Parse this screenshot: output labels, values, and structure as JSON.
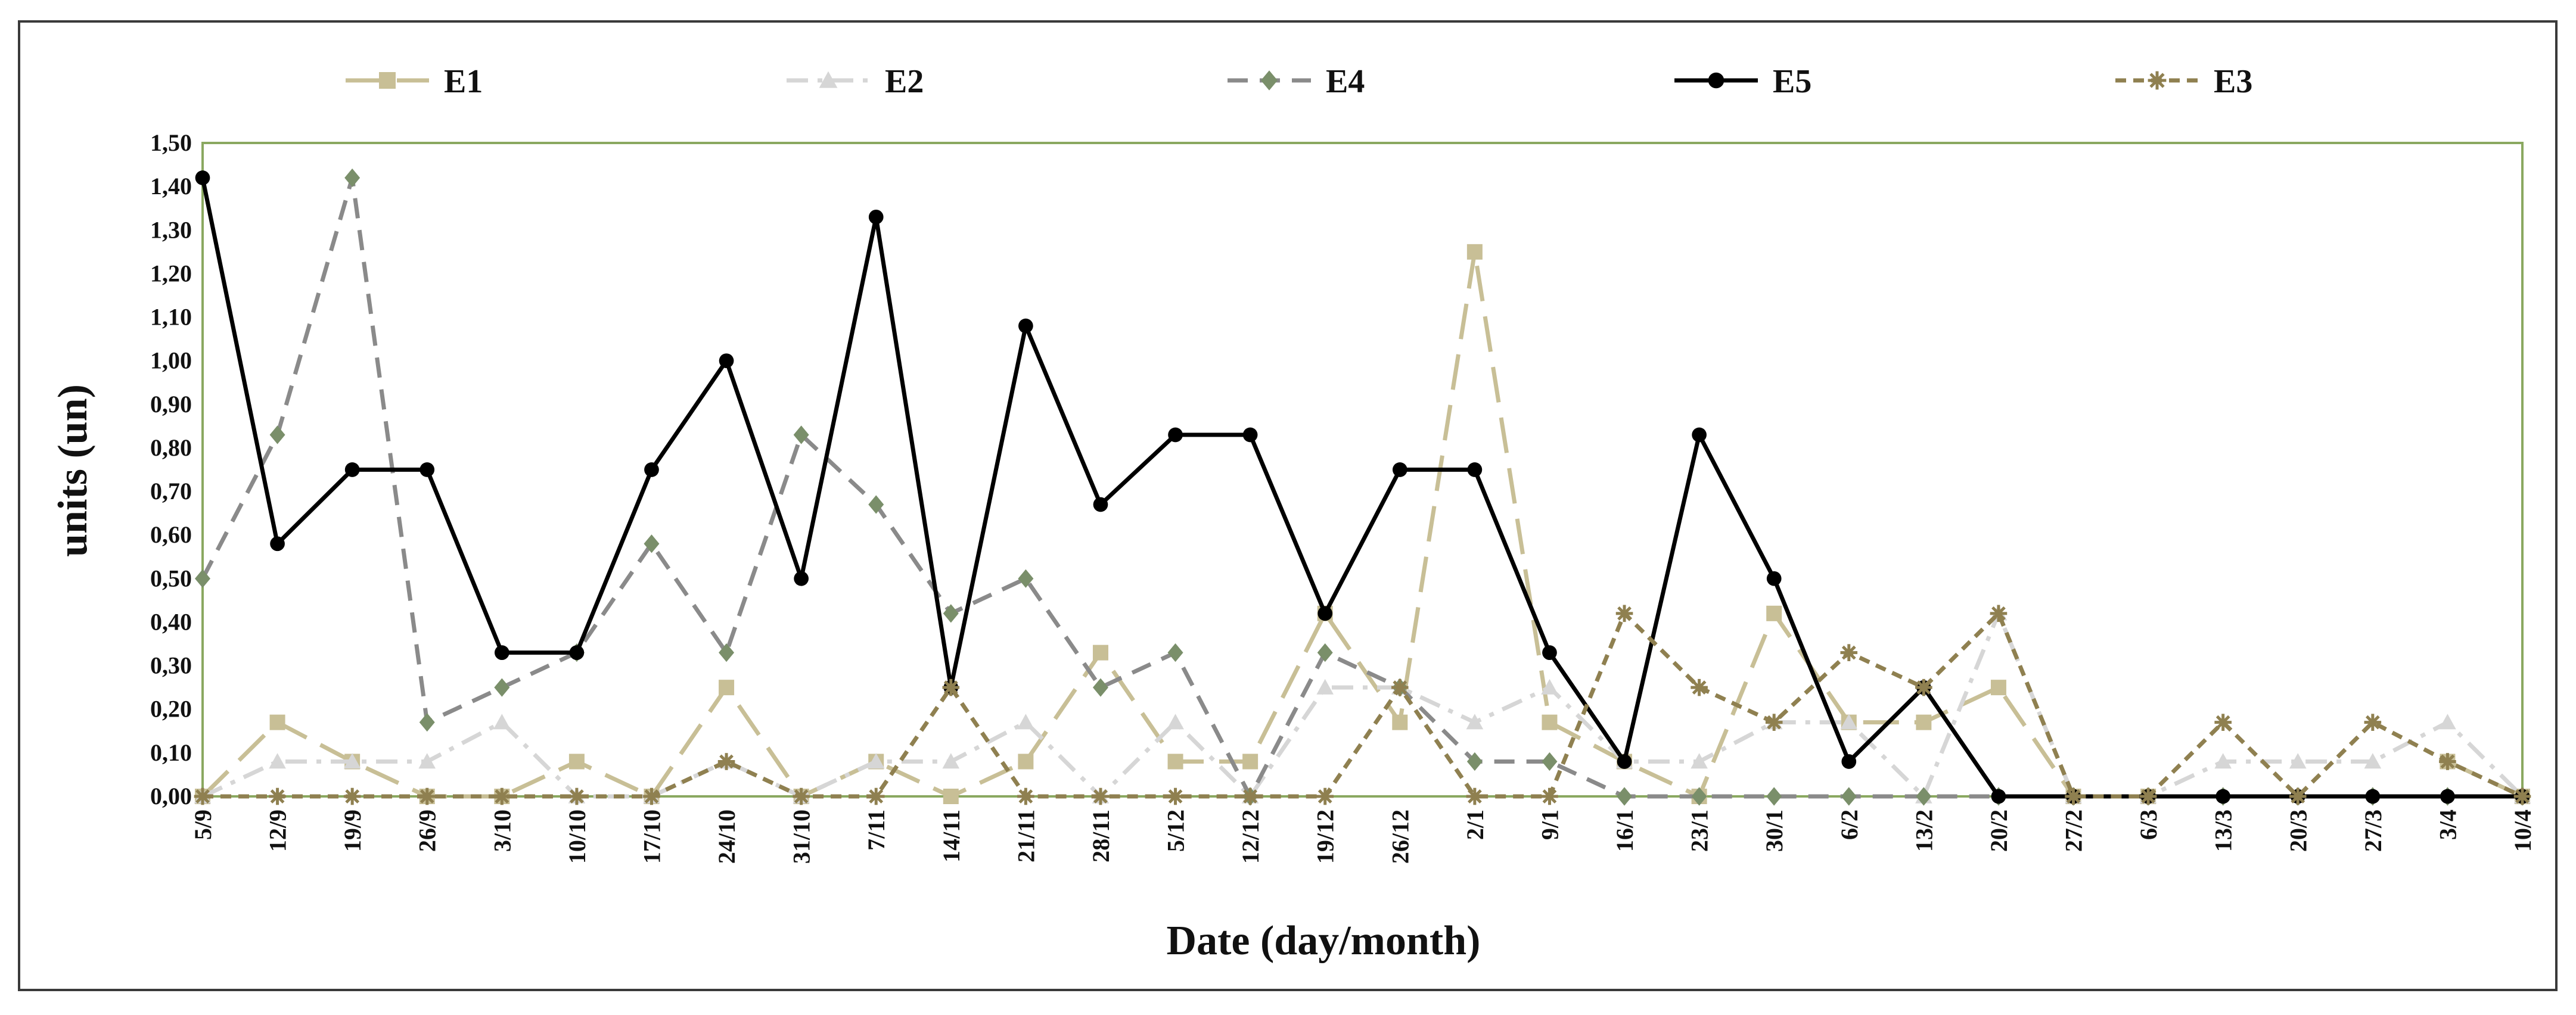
{
  "chart_data": {
    "type": "line",
    "title": "",
    "xlabel": "Date (day/month)",
    "ylabel": "units (un)",
    "ylim": [
      0,
      1.5
    ],
    "y_ticks": [
      "0,00",
      "0,10",
      "0,20",
      "0,30",
      "0,40",
      "0,50",
      "0,60",
      "0,70",
      "0,80",
      "0,90",
      "1,00",
      "1,10",
      "1,20",
      "1,30",
      "1,40",
      "1,50"
    ],
    "categories": [
      "5/9",
      "12/9",
      "19/9",
      "26/9",
      "3/10",
      "10/10",
      "17/10",
      "24/10",
      "31/10",
      "7/11",
      "14/11",
      "21/11",
      "28/11",
      "5/12",
      "12/12",
      "19/12",
      "26/12",
      "2/1",
      "9/1",
      "16/1",
      "23/1",
      "30/1",
      "6/2",
      "13/2",
      "20/2",
      "27/2",
      "6/3",
      "13/3",
      "20/3",
      "27/3",
      "3/4",
      "10/4"
    ],
    "legend_position": "top",
    "series": [
      {
        "name": "E1",
        "color": "#c8bf96",
        "marker": "square",
        "dash": "long-dash",
        "values": [
          0.0,
          0.17,
          0.08,
          0.0,
          0.0,
          0.08,
          0.0,
          0.25,
          0.0,
          0.08,
          0.0,
          0.08,
          0.33,
          0.08,
          0.08,
          0.42,
          0.17,
          1.25,
          0.17,
          0.08,
          0.0,
          0.42,
          0.17,
          0.17,
          0.25,
          0.0,
          0.0,
          null,
          null,
          null,
          0.08,
          0.0
        ]
      },
      {
        "name": "E2",
        "color": "#d6d6d6",
        "marker": "triangle",
        "dash": "dash-dot",
        "values": [
          0.0,
          0.08,
          0.08,
          0.08,
          0.17,
          0.0,
          0.0,
          0.08,
          0.0,
          0.08,
          0.08,
          0.17,
          0.0,
          0.17,
          0.0,
          0.25,
          0.25,
          0.17,
          0.25,
          0.08,
          0.08,
          0.17,
          0.17,
          0.0,
          0.42,
          0.0,
          0.0,
          0.08,
          0.08,
          0.08,
          0.17,
          0.0
        ]
      },
      {
        "name": "E4",
        "color": "#7a8f6a",
        "line_color": "#8a8a8a",
        "marker": "diamond",
        "dash": "dash",
        "values": [
          0.5,
          0.83,
          1.42,
          0.17,
          0.25,
          0.33,
          0.58,
          0.33,
          0.83,
          0.67,
          0.42,
          0.5,
          0.25,
          0.33,
          0.0,
          0.33,
          0.25,
          0.08,
          0.08,
          0.0,
          0.0,
          0.0,
          0.0,
          0.0,
          0.0,
          0.0,
          0.0,
          0.0,
          0.0,
          0.0,
          0.0,
          0.0
        ]
      },
      {
        "name": "E5",
        "color": "#000000",
        "marker": "circle",
        "dash": "solid",
        "values": [
          1.42,
          0.58,
          0.75,
          0.75,
          0.33,
          0.33,
          0.75,
          1.0,
          0.5,
          1.33,
          0.25,
          1.08,
          0.67,
          0.83,
          0.83,
          0.42,
          0.75,
          0.75,
          0.33,
          0.08,
          0.83,
          0.5,
          0.08,
          0.25,
          0.0,
          0.0,
          0.0,
          0.0,
          0.0,
          0.0,
          0.0,
          0.0
        ]
      },
      {
        "name": "E3",
        "color": "#8f8050",
        "marker": "star",
        "dash": "short-dash",
        "values": [
          0.0,
          0.0,
          0.0,
          0.0,
          0.0,
          0.0,
          0.0,
          0.08,
          0.0,
          0.0,
          0.25,
          0.0,
          0.0,
          0.0,
          0.0,
          0.0,
          0.25,
          0.0,
          0.0,
          0.42,
          0.25,
          0.17,
          0.33,
          0.25,
          0.42,
          0.0,
          0.0,
          0.17,
          0.0,
          0.17,
          0.08,
          0.0
        ]
      }
    ]
  }
}
